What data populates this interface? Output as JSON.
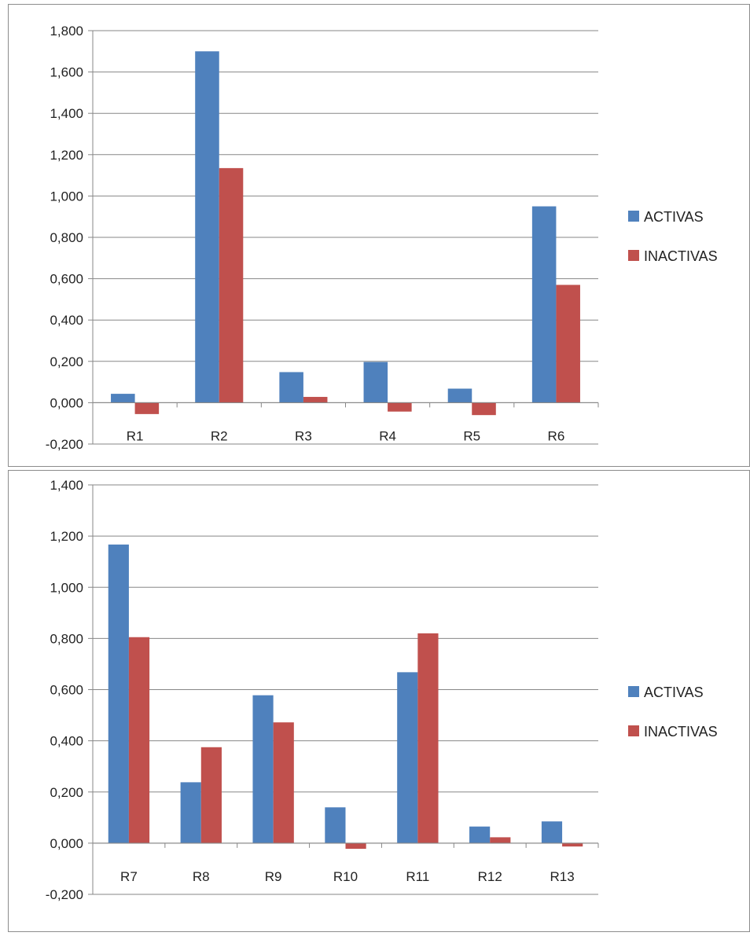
{
  "chart_data": [
    {
      "type": "bar",
      "categories": [
        "R1",
        "R2",
        "R3",
        "R4",
        "R5",
        "R6"
      ],
      "series": [
        {
          "name": "ACTIVAS",
          "values": [
            0.043,
            1.7,
            0.148,
            0.197,
            0.068,
            0.95
          ]
        },
        {
          "name": "INACTIVAS",
          "values": [
            -0.055,
            1.135,
            0.028,
            -0.043,
            -0.06,
            0.57
          ]
        }
      ],
      "yticks": [
        "-0,200",
        "0,000",
        "0,200",
        "0,400",
        "0,600",
        "0,800",
        "1,000",
        "1,200",
        "1,400",
        "1,600",
        "1,800"
      ],
      "ylim": [
        -0.2,
        1.8
      ],
      "ystep": 0.2,
      "grid": true,
      "legend_position": "right"
    },
    {
      "type": "bar",
      "categories": [
        "R7",
        "R8",
        "R9",
        "R10",
        "R11",
        "R12",
        "R13"
      ],
      "series": [
        {
          "name": "ACTIVAS",
          "values": [
            1.167,
            0.238,
            0.578,
            0.14,
            0.668,
            0.065,
            0.085
          ]
        },
        {
          "name": "INACTIVAS",
          "values": [
            0.805,
            0.375,
            0.472,
            -0.022,
            0.82,
            0.023,
            -0.013
          ]
        }
      ],
      "yticks": [
        "-0,200",
        "0,000",
        "0,200",
        "0,400",
        "0,600",
        "0,800",
        "1,000",
        "1,200",
        "1,400"
      ],
      "ylim": [
        -0.2,
        1.4
      ],
      "ystep": 0.2,
      "grid": true,
      "legend_position": "right"
    }
  ],
  "colors": {
    "ACTIVAS": "#4f81bd",
    "INACTIVAS": "#c0504d",
    "grid": "#878787",
    "axis": "#878787"
  }
}
